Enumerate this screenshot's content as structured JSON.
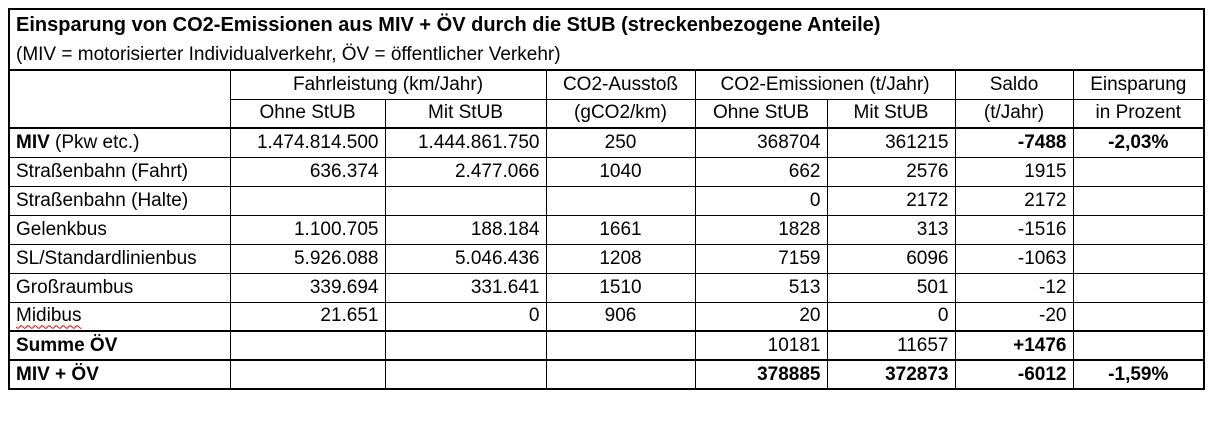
{
  "title": "Einsparung von CO2-Emissionen aus MIV + ÖV durch die StUB (streckenbezogene Anteile)",
  "subtitle": "(MIV = motorisierter Individualverkehr, ÖV = öffentlicher Verkehr)",
  "header": {
    "fahrleistung": "Fahrleistung (km/Jahr)",
    "ausstoss": "CO2-Ausstoß",
    "emissionen": "CO2-Emissionen (t/Jahr)",
    "saldo": "Saldo",
    "einsparung": "Einsparung",
    "ohne_stub_1": "Ohne StUB",
    "mit_stub_1": "Mit StUB",
    "ausstoss_unit": "(gCO2/km)",
    "ohne_stub_2": "Ohne StUB",
    "mit_stub_2": "Mit StUB",
    "saldo_unit": "(t/Jahr)",
    "einsparung_unit": "in Prozent"
  },
  "rows": [
    {
      "label_bold": "MIV",
      "label_rest": " (Pkw etc.)",
      "fl_ohne": "1.474.814.500",
      "fl_mit": "1.444.861.750",
      "ausstoss": "250",
      "em_ohne": "368704",
      "em_mit": "361215",
      "saldo": "-7488",
      "einsparung": "-2,03%"
    },
    {
      "label": "Straßenbahn (Fahrt)",
      "fl_ohne": "636.374",
      "fl_mit": "2.477.066",
      "ausstoss": "1040",
      "em_ohne": "662",
      "em_mit": "2576",
      "saldo": "1915",
      "einsparung": ""
    },
    {
      "label": "Straßenbahn (Halte)",
      "fl_ohne": "",
      "fl_mit": "",
      "ausstoss": "",
      "em_ohne": "0",
      "em_mit": "2172",
      "saldo": "2172",
      "einsparung": ""
    },
    {
      "label": "Gelenkbus",
      "fl_ohne": "1.100.705",
      "fl_mit": "188.184",
      "ausstoss": "1661",
      "em_ohne": "1828",
      "em_mit": "313",
      "saldo": "-1516",
      "einsparung": ""
    },
    {
      "label": "SL/Standardlinienbus",
      "fl_ohne": "5.926.088",
      "fl_mit": "5.046.436",
      "ausstoss": "1208",
      "em_ohne": "7159",
      "em_mit": "6096",
      "saldo": "-1063",
      "einsparung": ""
    },
    {
      "label": "Großraumbus",
      "fl_ohne": "339.694",
      "fl_mit": "331.641",
      "ausstoss": "1510",
      "em_ohne": "513",
      "em_mit": "501",
      "saldo": "-12",
      "einsparung": ""
    },
    {
      "label": "Midibus",
      "fl_ohne": "21.651",
      "fl_mit": "0",
      "ausstoss": "906",
      "em_ohne": "20",
      "em_mit": "0",
      "saldo": "-20",
      "einsparung": ""
    },
    {
      "label": "Summe ÖV",
      "fl_ohne": "",
      "fl_mit": "",
      "ausstoss": "",
      "em_ohne": "10181",
      "em_mit": "11657",
      "saldo": "+1476",
      "einsparung": ""
    },
    {
      "label": "MIV + ÖV",
      "fl_ohne": "",
      "fl_mit": "",
      "ausstoss": "",
      "em_ohne": "378885",
      "em_mit": "372873",
      "saldo": "-6012",
      "einsparung": "-1,59%"
    }
  ]
}
